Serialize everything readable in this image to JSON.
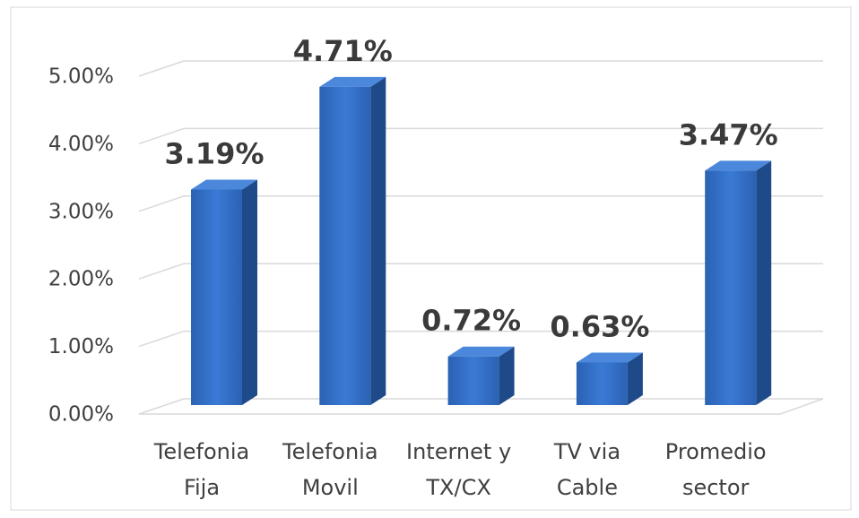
{
  "chart_data": {
    "type": "bar3d",
    "categories": [
      [
        "Telefonia",
        "Fija"
      ],
      [
        "Telefonia",
        "Movil"
      ],
      [
        "Internet y",
        "TX/CX"
      ],
      [
        "TV via",
        "Cable"
      ],
      [
        "Promedio",
        "sector"
      ]
    ],
    "values": [
      3.19,
      4.71,
      0.72,
      0.63,
      3.47
    ],
    "value_labels": [
      "3.19%",
      "4.71%",
      "0.72%",
      "0.63%",
      "3.47%"
    ],
    "color": "#2f6cc0",
    "ylim": [
      0,
      5
    ],
    "yticks": [
      {
        "value": 0,
        "label": "0.00%"
      },
      {
        "value": 1,
        "label": "1.00%"
      },
      {
        "value": 2,
        "label": "2.00%"
      },
      {
        "value": 3,
        "label": "3.00%"
      },
      {
        "value": 4,
        "label": "4.00%"
      },
      {
        "value": 5,
        "label": "5.00%"
      }
    ],
    "grid": true
  }
}
